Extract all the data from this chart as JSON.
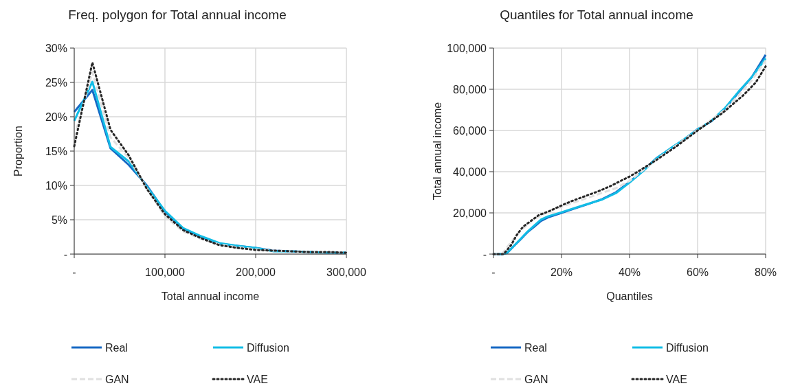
{
  "chart_data": [
    {
      "type": "line",
      "title": "Freq. polygon for Total annual income",
      "xlabel": "Total annual income",
      "ylabel": "Proportion",
      "x": [
        0,
        20000,
        40000,
        60000,
        80000,
        100000,
        120000,
        140000,
        160000,
        180000,
        200000,
        220000,
        240000,
        260000,
        280000,
        300000
      ],
      "series": [
        {
          "name": "Real",
          "color": "#1668c4",
          "line_style": "solid",
          "values": [
            0.207,
            0.239,
            0.154,
            0.13,
            0.1,
            0.062,
            0.037,
            0.025,
            0.015,
            0.012,
            0.009,
            0.005,
            0.004,
            0.003,
            0.002,
            0.002
          ]
        },
        {
          "name": "Diffusion",
          "color": "#12bde6",
          "line_style": "solid",
          "values": [
            0.194,
            0.251,
            0.156,
            0.135,
            0.098,
            0.063,
            0.038,
            0.026,
            0.016,
            0.012,
            0.009,
            0.004,
            0.004,
            0.003,
            0.002,
            0.002
          ]
        },
        {
          "name": "GAN",
          "color": "#e0e0e0",
          "line_style": "dashed",
          "values": [
            0.17,
            0.265,
            0.17,
            0.14,
            0.096,
            0.055,
            0.033,
            0.022,
            0.014,
            0.01,
            0.007,
            0.005,
            0.004,
            0.003,
            0.003,
            0.002
          ]
        },
        {
          "name": "VAE",
          "color": "#262626",
          "line_style": "dotted",
          "values": [
            0.157,
            0.279,
            0.181,
            0.144,
            0.095,
            0.058,
            0.035,
            0.023,
            0.013,
            0.009,
            0.006,
            0.005,
            0.004,
            0.003,
            0.003,
            0.002
          ]
        }
      ],
      "xlim": [
        0,
        300000
      ],
      "xticks": [
        {
          "value": 0,
          "label": "-"
        },
        {
          "value": 100000,
          "label": "100,000"
        },
        {
          "value": 200000,
          "label": "200,000"
        },
        {
          "value": 300000,
          "label": "300,000"
        }
      ],
      "ylim": [
        0,
        0.3
      ],
      "yticks": [
        {
          "value": 0,
          "label": "-"
        },
        {
          "value": 0.05,
          "label": "5%"
        },
        {
          "value": 0.1,
          "label": "10%"
        },
        {
          "value": 0.15,
          "label": "15%"
        },
        {
          "value": 0.2,
          "label": "20%"
        },
        {
          "value": 0.25,
          "label": "25%"
        },
        {
          "value": 0.3,
          "label": "30%"
        }
      ],
      "grid": true,
      "legend": "bottom"
    },
    {
      "type": "line",
      "title": "Quantiles for Total annual income",
      "xlabel": "Quantiles",
      "ylabel": "Total annual income",
      "series": [
        {
          "name": "Real",
          "color": "#1668c4",
          "line_style": "solid",
          "x": [
            0,
            0.025,
            0.04,
            0.06,
            0.08,
            0.1,
            0.12,
            0.14,
            0.16,
            0.18,
            0.2,
            0.24,
            0.28,
            0.32,
            0.36,
            0.4,
            0.44,
            0.48,
            0.52,
            0.56,
            0.6,
            0.64,
            0.68,
            0.72,
            0.76,
            0.8
          ],
          "values": [
            0,
            0,
            500,
            3900,
            7200,
            10600,
            13300,
            16100,
            17800,
            18900,
            20000,
            22200,
            24400,
            26700,
            30000,
            35000,
            40500,
            46700,
            51100,
            55600,
            60600,
            64400,
            70600,
            78300,
            86100,
            96700
          ]
        },
        {
          "name": "Diffusion",
          "color": "#12bde6",
          "line_style": "solid",
          "x": [
            0,
            0.025,
            0.04,
            0.06,
            0.08,
            0.1,
            0.12,
            0.14,
            0.16,
            0.18,
            0.2,
            0.24,
            0.28,
            0.32,
            0.36,
            0.4,
            0.44,
            0.48,
            0.52,
            0.56,
            0.6,
            0.64,
            0.68,
            0.72,
            0.76,
            0.8
          ],
          "values": [
            0,
            0,
            600,
            4000,
            7400,
            10900,
            13900,
            16800,
            18300,
            19300,
            20300,
            22400,
            24500,
            26500,
            29600,
            34700,
            40300,
            46600,
            51300,
            55700,
            60500,
            64600,
            70800,
            78800,
            86000,
            95000
          ]
        },
        {
          "name": "GAN",
          "color": "#e0e0e0",
          "line_style": "dashed",
          "x": [
            0,
            0.025,
            0.05,
            0.08,
            0.12,
            0.16,
            0.2,
            0.28,
            0.36,
            0.4,
            0.48,
            0.56,
            0.6,
            0.68,
            0.72,
            0.76,
            0.8
          ],
          "values": [
            0,
            0,
            5500,
            11500,
            17000,
            20500,
            23000,
            27500,
            32000,
            35500,
            46000,
            55500,
            60300,
            70000,
            77000,
            84500,
            94000
          ]
        },
        {
          "name": "VAE",
          "color": "#262626",
          "line_style": "dotted",
          "x": [
            0,
            0.03,
            0.052,
            0.069,
            0.087,
            0.106,
            0.133,
            0.165,
            0.2,
            0.228,
            0.264,
            0.31,
            0.345,
            0.381,
            0.402,
            0.43,
            0.48,
            0.537,
            0.6,
            0.672,
            0.735,
            0.771,
            0.8
          ],
          "values": [
            0,
            0,
            4400,
            9400,
            13300,
            15600,
            18900,
            20900,
            23600,
            25600,
            27800,
            30600,
            33100,
            36100,
            37800,
            40600,
            45800,
            52200,
            60000,
            68300,
            77200,
            83300,
            91100
          ]
        }
      ],
      "xlim": [
        0,
        0.8
      ],
      "xticks": [
        {
          "value": 0,
          "label": "-"
        },
        {
          "value": 0.2,
          "label": "20%"
        },
        {
          "value": 0.4,
          "label": "40%"
        },
        {
          "value": 0.6,
          "label": "60%"
        },
        {
          "value": 0.8,
          "label": "80%"
        }
      ],
      "ylim": [
        0,
        100000
      ],
      "yticks": [
        {
          "value": 0,
          "label": "-"
        },
        {
          "value": 20000,
          "label": "20,000"
        },
        {
          "value": 40000,
          "label": "40,000"
        },
        {
          "value": 60000,
          "label": "60,000"
        },
        {
          "value": 80000,
          "label": "80,000"
        },
        {
          "value": 100000,
          "label": "100,000"
        }
      ],
      "grid": true,
      "legend": "bottom"
    }
  ]
}
